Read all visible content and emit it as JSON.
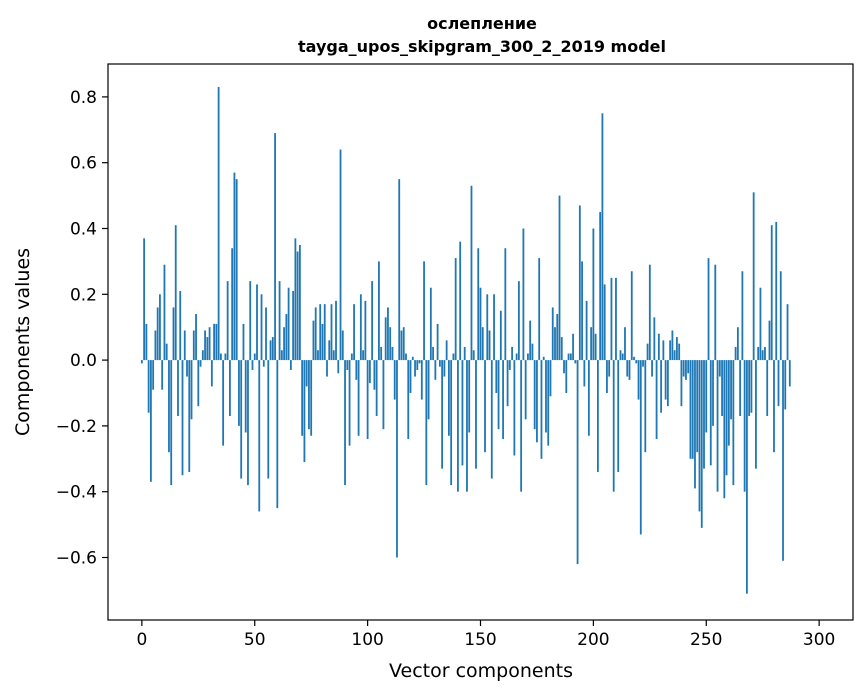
{
  "chart_data": {
    "type": "bar",
    "title": "ослепление",
    "subtitle": "tayga_upos_skipgram_300_2_2019 model",
    "xlabel": "Vector components",
    "ylabel": "Components values",
    "xlim": [
      -15,
      315
    ],
    "ylim": [
      -0.79,
      0.9
    ],
    "xticks": [
      0,
      50,
      100,
      150,
      200,
      250,
      300
    ],
    "xtick_labels": [
      "0",
      "50",
      "100",
      "150",
      "200",
      "250",
      "300"
    ],
    "yticks": [
      -0.6,
      -0.4,
      -0.2,
      0.0,
      0.2,
      0.4,
      0.6,
      0.8
    ],
    "ytick_labels": [
      "−0.6",
      "−0.4",
      "−0.2",
      "0.0",
      "0.2",
      "0.4",
      "0.6",
      "0.8"
    ],
    "grid": false,
    "bar_color": "#1f77b4",
    "values": [
      -0.01,
      0.37,
      0.11,
      -0.16,
      -0.37,
      -0.09,
      0.09,
      0.16,
      0.2,
      -0.09,
      0.29,
      0.05,
      -0.28,
      -0.38,
      0.16,
      0.41,
      -0.17,
      0.21,
      -0.35,
      0.09,
      -0.05,
      -0.34,
      -0.18,
      0.09,
      0.14,
      -0.14,
      -0.02,
      0.03,
      0.09,
      0.07,
      0.1,
      -0.08,
      0.11,
      0.11,
      0.83,
      0.02,
      -0.26,
      0.02,
      0.24,
      -0.17,
      0.34,
      0.57,
      0.55,
      -0.2,
      -0.36,
      0.11,
      -0.22,
      -0.38,
      0.24,
      -0.03,
      0.02,
      0.23,
      -0.46,
      0.2,
      -0.02,
      0.16,
      -0.36,
      0.06,
      0.07,
      0.69,
      -0.45,
      0.24,
      0.03,
      0.1,
      0.14,
      0.22,
      -0.03,
      0.21,
      0.37,
      0.33,
      0.35,
      -0.23,
      -0.31,
      -0.08,
      -0.21,
      -0.23,
      0.12,
      0.16,
      0.03,
      0.17,
      0.11,
      0.17,
      -0.05,
      0.06,
      0.17,
      0.03,
      0.18,
      -0.04,
      0.64,
      0.09,
      -0.38,
      -0.03,
      -0.26,
      0.02,
      0.17,
      -0.06,
      -0.23,
      0.2,
      0.03,
      0.18,
      -0.24,
      -0.07,
      0.24,
      -0.09,
      -0.17,
      0.3,
      0.04,
      -0.21,
      0.13,
      0.16,
      0.1,
      0.04,
      -0.12,
      -0.6,
      0.55,
      0.09,
      0.1,
      0.02,
      -0.24,
      -0.1,
      0.01,
      -0.05,
      -0.03,
      -0.01,
      -0.12,
      0.3,
      -0.38,
      -0.18,
      0.22,
      0.04,
      -0.06,
      0.11,
      -0.02,
      -0.33,
      -0.05,
      0.06,
      -0.23,
      -0.38,
      0.02,
      0.31,
      -0.4,
      0.36,
      -0.32,
      0.04,
      -0.4,
      -0.22,
      0.53,
      0.03,
      -0.33,
      0.34,
      0.22,
      0.1,
      -0.28,
      0.2,
      0.09,
      -0.36,
      0.2,
      -0.1,
      -0.21,
      0.15,
      -0.24,
      0.34,
      -0.14,
      -0.03,
      0.04,
      -0.29,
      0.02,
      0.24,
      -0.4,
      0.4,
      -0.18,
      0.02,
      0.12,
      0.05,
      -0.21,
      -0.25,
      0.31,
      -0.3,
      0.01,
      -0.22,
      -0.26,
      -0.11,
      0.16,
      0.1,
      0.14,
      0.5,
      0.07,
      -0.04,
      -0.1,
      0.02,
      0.02,
      0.08,
      -0.01,
      -0.62,
      0.47,
      0.3,
      -0.08,
      0.18,
      -0.23,
      0.1,
      0.4,
      0.08,
      -0.34,
      0.45,
      0.75,
      0.23,
      -0.1,
      -0.05,
      0.25,
      -0.4,
      0.25,
      -0.34,
      0.03,
      0.02,
      0.1,
      -0.05,
      -0.06,
      0.27,
      0.01,
      -0.01,
      -0.12,
      -0.53,
      -0.02,
      -0.28,
      0.05,
      0.29,
      -0.05,
      0.13,
      -0.24,
      0.08,
      -0.16,
      0.06,
      -0.12,
      -0.14,
      0.06,
      0.09,
      0.03,
      0.07,
      0.05,
      -0.14,
      -0.05,
      -0.06,
      -0.04,
      -0.3,
      -0.3,
      -0.39,
      -0.28,
      -0.46,
      -0.51,
      -0.33,
      -0.22,
      0.31,
      -0.32,
      -0.2,
      0.29,
      -0.4,
      -0.05,
      -0.17,
      -0.42,
      -0.35,
      -0.26,
      -0.18,
      -0.38,
      0.04,
      0.1,
      -0.17,
      0.27,
      -0.4,
      -0.71,
      -0.17,
      -0.16,
      0.51,
      -0.33,
      0.04,
      0.22,
      0.03,
      0.04,
      -0.17,
      0.12,
      0.41,
      -0.28,
      0.42,
      -0.14,
      0.27,
      -0.61,
      -0.15,
      0.17,
      -0.08
    ]
  }
}
